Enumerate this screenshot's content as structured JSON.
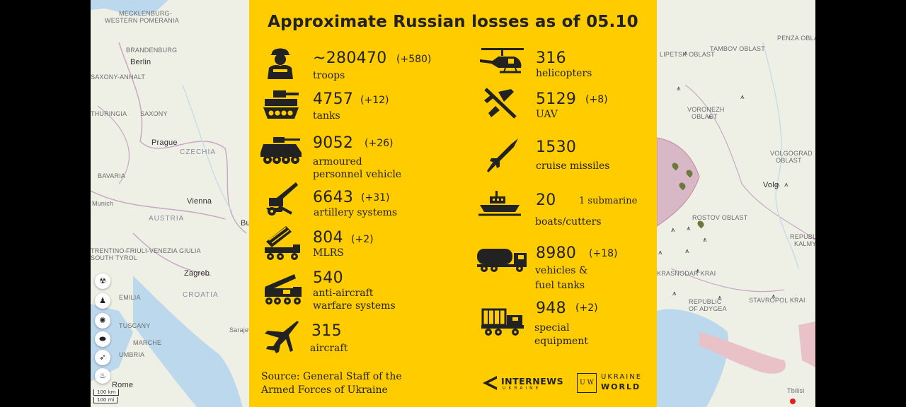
{
  "title": "Approximate Russian losses as of 05.10",
  "colors": {
    "panel": "#ffcc00",
    "ink": "#222222",
    "map": "#eef0e6"
  },
  "losses_left": [
    {
      "icon": "soldier-icon",
      "value": "~280470",
      "delta": "(+580)",
      "label_lines": [
        "troops"
      ]
    },
    {
      "icon": "tank-icon",
      "value": "4757",
      "delta": "(+12)",
      "label_lines": [
        "tanks"
      ]
    },
    {
      "icon": "apc-icon",
      "value": "9052",
      "delta": "(+26)",
      "label_lines": [
        "armoured",
        "personnel vehicle"
      ]
    },
    {
      "icon": "artillery-icon",
      "value": "6643",
      "delta": "(+31)",
      "label_lines": [
        "artillery systems"
      ]
    },
    {
      "icon": "mlrs-icon",
      "value": "804",
      "delta": "(+2)",
      "label_lines": [
        "MLRS"
      ]
    },
    {
      "icon": "anti-aircraft-icon",
      "value": "540",
      "delta": "",
      "label_lines": [
        "anti-aircraft",
        "warfare systems"
      ]
    },
    {
      "icon": "aircraft-icon",
      "value": "315",
      "delta": "",
      "label_lines": [
        "aircraft"
      ]
    }
  ],
  "losses_right": [
    {
      "icon": "helicopter-icon",
      "value": "316",
      "delta": "",
      "label_lines": [
        "helicopters"
      ]
    },
    {
      "icon": "uav-icon",
      "value": "5129",
      "delta": "(+8)",
      "label_lines": [
        "UAV"
      ]
    },
    {
      "icon": "missile-icon",
      "value": "1530",
      "delta": "",
      "label_lines": [
        "cruise missiles"
      ]
    },
    {
      "icon": "boat-icon",
      "value": "20",
      "delta": "1 submarine",
      "label_lines": [
        "boats/cutters"
      ]
    },
    {
      "icon": "fuel-truck-icon",
      "value": "8980",
      "delta": "(+18)",
      "label_lines": [
        "vehicles &",
        "fuel tanks"
      ]
    },
    {
      "icon": "special-equipment-icon",
      "value": "948",
      "delta": "(+2)",
      "label_lines": [
        "special",
        "equipment"
      ]
    }
  ],
  "source_lines": [
    "Source: General Staff of the",
    "Armed Forces of Ukraine"
  ],
  "logos": {
    "internews": "INTERNEWS",
    "internews_sub": "UKRAINE",
    "uw_mark": "U W",
    "uw_top": "UKRAINE",
    "uw_bottom": "WORLD"
  },
  "map": {
    "labels_left": [
      "MECKLENBURG-",
      "WESTERN POMERANIA",
      "BRANDENBURG",
      "Berlin",
      "SAXONY-ANHALT",
      "SAXONY",
      "THURINGIA",
      "Prague",
      "CZECHIA",
      "BAVARIA",
      "Munich",
      "Vienna",
      "AUSTRIA",
      "TRENTINO-",
      "SOUTH TYROL",
      "FRIULI-VENEZIA GIULIA",
      "Zagreb",
      "CROATIA",
      "EMILIA",
      "TUSCANY",
      "UMBRIA",
      "MARCHE",
      "Rome",
      "Sarajevo",
      "Bu"
    ],
    "labels_right": [
      "TAMBOV OBLAST",
      "PENZA OBLAST",
      "LIPETSK OBLAST",
      "VORONEZH",
      "OBLAST",
      "VOLGOGRAD",
      "OBLAST",
      "Volg",
      "ROSTOV OBLAST",
      "REPUBLIC",
      "KALMYK",
      "KRASNODAR KRAI",
      "REPUBLIC",
      "OF ADYGEA",
      "STAVROPOL KRAI",
      "Tbilisi"
    ],
    "scale": [
      "100 km",
      "100 mi"
    ]
  }
}
